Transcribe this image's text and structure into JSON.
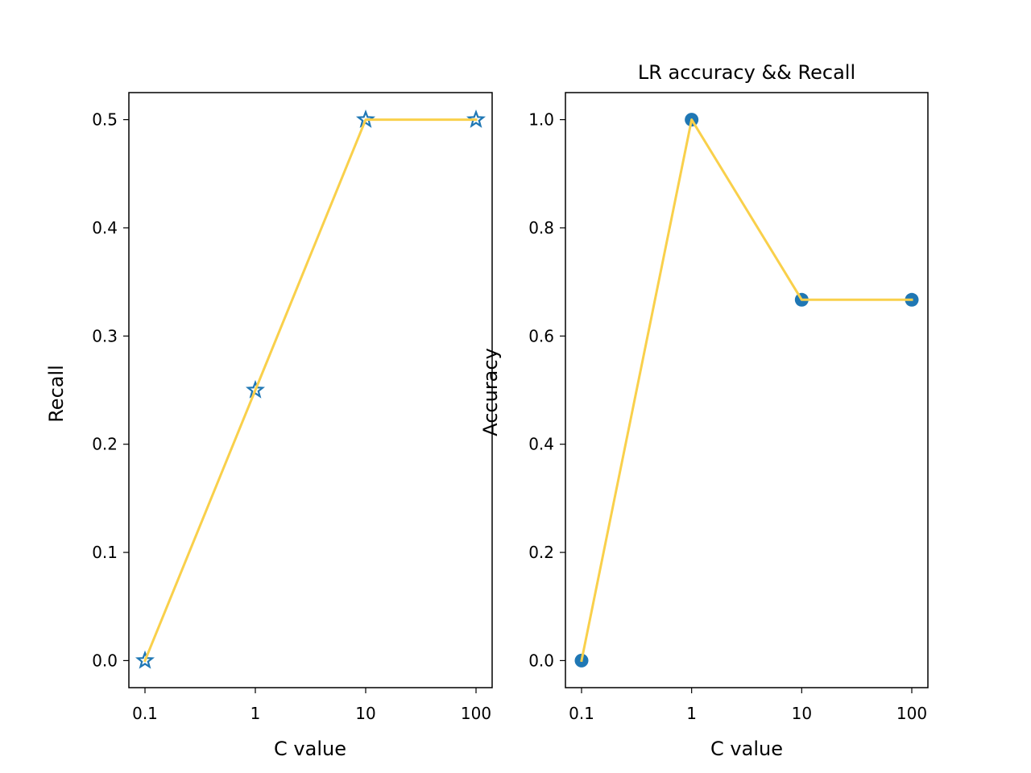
{
  "chart_data": [
    {
      "type": "line",
      "title": "",
      "xlabel": "C value",
      "ylabel": "Recall",
      "categories": [
        "0.1",
        "1",
        "10",
        "100"
      ],
      "values": [
        0.0,
        0.25,
        0.5,
        0.5
      ],
      "ylim": [
        -0.025,
        0.525
      ],
      "yticks": [
        0.0,
        0.1,
        0.2,
        0.3,
        0.4,
        0.5
      ],
      "ytick_labels": [
        "0.0",
        "0.1",
        "0.2",
        "0.3",
        "0.4",
        "0.5"
      ],
      "marker": "star",
      "line_color": "#f9d04b",
      "marker_color": "#1f77b4",
      "grid": false
    },
    {
      "type": "line",
      "title": "LR accuracy && Recall",
      "xlabel": "C value",
      "ylabel": "Accuracy",
      "categories": [
        "0.1",
        "1",
        "10",
        "100"
      ],
      "values": [
        0.0,
        1.0,
        0.667,
        0.667
      ],
      "ylim": [
        -0.05,
        1.05
      ],
      "yticks": [
        0.0,
        0.2,
        0.4,
        0.6,
        0.8,
        1.0
      ],
      "ytick_labels": [
        "0.0",
        "0.2",
        "0.4",
        "0.6",
        "0.8",
        "1.0"
      ],
      "marker": "circle",
      "line_color": "#f9d04b",
      "marker_color": "#1f77b4",
      "grid": false
    }
  ]
}
